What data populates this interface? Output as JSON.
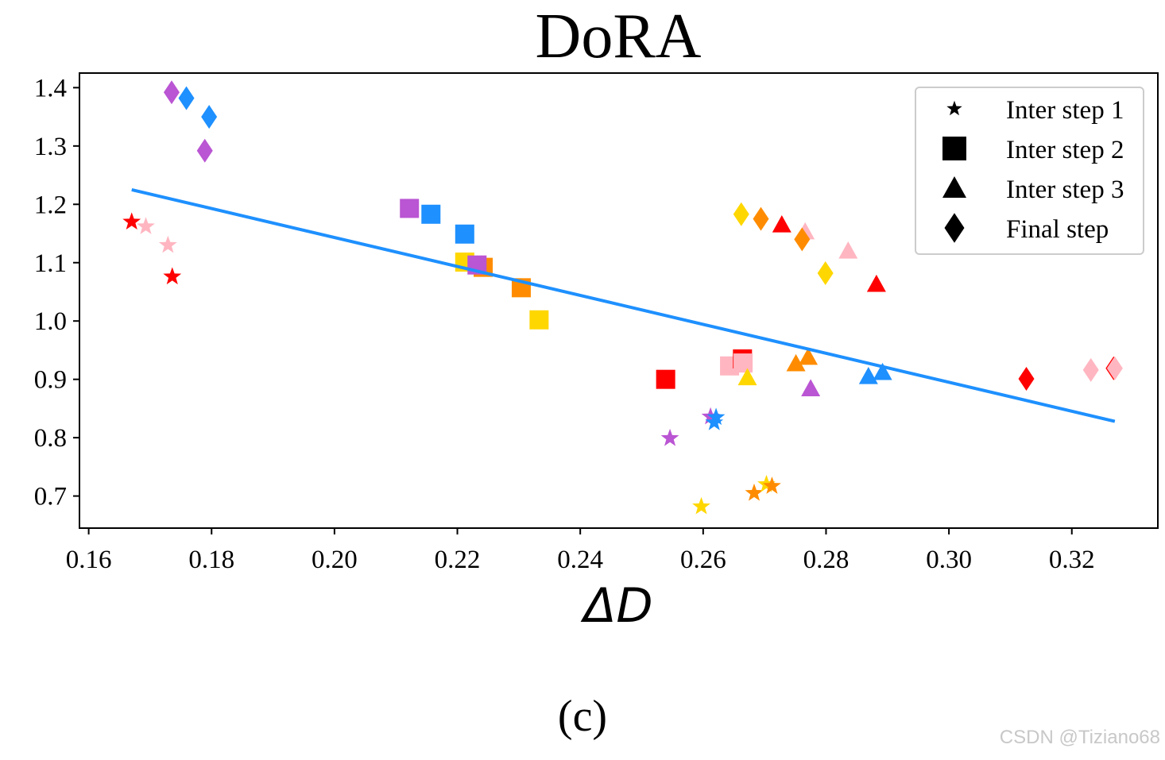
{
  "chart_data": {
    "type": "scatter",
    "title": "DoRA",
    "xlabel": "ΔD",
    "ylabel": "",
    "xlim": [
      0.1585,
      0.334
    ],
    "ylim": [
      0.645,
      1.425
    ],
    "xticks": [
      "0.16",
      "0.18",
      "0.20",
      "0.22",
      "0.24",
      "0.26",
      "0.28",
      "0.30",
      "0.32"
    ],
    "yticks": [
      "0.7",
      "0.8",
      "0.9",
      "1.0",
      "1.1",
      "1.2",
      "1.3",
      "1.4"
    ],
    "grid": false,
    "legend_position": "top-right",
    "legend": [
      {
        "marker": "star",
        "label": "Inter step 1"
      },
      {
        "marker": "square",
        "label": "Inter step 2"
      },
      {
        "marker": "triangle",
        "label": "Inter step 3"
      },
      {
        "marker": "diamond",
        "label": "Final step"
      }
    ],
    "fit_line": {
      "color": "#1e90ff",
      "x": [
        0.167,
        0.327
      ],
      "y": [
        1.225,
        0.828
      ]
    },
    "points": [
      {
        "x": 0.167,
        "y": 1.17,
        "marker": "star",
        "color": "#ff0000"
      },
      {
        "x": 0.1693,
        "y": 1.162,
        "marker": "star",
        "color": "#ffb6c1"
      },
      {
        "x": 0.1729,
        "y": 1.13,
        "marker": "star",
        "color": "#ffb6c1"
      },
      {
        "x": 0.1736,
        "y": 1.076,
        "marker": "star",
        "color": "#ff0000"
      },
      {
        "x": 0.2546,
        "y": 0.799,
        "marker": "star",
        "color": "#ba55d3"
      },
      {
        "x": 0.2597,
        "y": 0.682,
        "marker": "star",
        "color": "#ffd700"
      },
      {
        "x": 0.2612,
        "y": 0.836,
        "marker": "star",
        "color": "#ba55d3"
      },
      {
        "x": 0.2618,
        "y": 0.826,
        "marker": "star",
        "color": "#1e90ff"
      },
      {
        "x": 0.2621,
        "y": 0.835,
        "marker": "star",
        "color": "#1e90ff"
      },
      {
        "x": 0.2683,
        "y": 0.705,
        "marker": "star",
        "color": "#ff8c00"
      },
      {
        "x": 0.2703,
        "y": 0.72,
        "marker": "star",
        "color": "#ffd700"
      },
      {
        "x": 0.2712,
        "y": 0.717,
        "marker": "star",
        "color": "#ff8c00"
      },
      {
        "x": 0.2122,
        "y": 1.193,
        "marker": "square",
        "color": "#ba55d3"
      },
      {
        "x": 0.2157,
        "y": 1.183,
        "marker": "square",
        "color": "#1e90ff"
      },
      {
        "x": 0.2212,
        "y": 1.149,
        "marker": "square",
        "color": "#1e90ff"
      },
      {
        "x": 0.2212,
        "y": 1.101,
        "marker": "square",
        "color": "#ffd700"
      },
      {
        "x": 0.2242,
        "y": 1.092,
        "marker": "square",
        "color": "#ff8c00"
      },
      {
        "x": 0.2232,
        "y": 1.096,
        "marker": "square",
        "color": "#ba55d3"
      },
      {
        "x": 0.2304,
        "y": 1.057,
        "marker": "square",
        "color": "#ff8c00"
      },
      {
        "x": 0.2333,
        "y": 1.002,
        "marker": "square",
        "color": "#ffd700"
      },
      {
        "x": 0.2539,
        "y": 0.9,
        "marker": "square",
        "color": "#ff0000"
      },
      {
        "x": 0.2643,
        "y": 0.923,
        "marker": "square",
        "color": "#ffb6c1"
      },
      {
        "x": 0.2664,
        "y": 0.935,
        "marker": "square",
        "color": "#ff0000"
      },
      {
        "x": 0.2665,
        "y": 0.928,
        "marker": "square",
        "color": "#ffb6c1"
      },
      {
        "x": 0.2672,
        "y": 0.903,
        "marker": "triangle",
        "color": "#ffd700"
      },
      {
        "x": 0.2728,
        "y": 1.165,
        "marker": "triangle",
        "color": "#ff0000"
      },
      {
        "x": 0.2751,
        "y": 0.927,
        "marker": "triangle",
        "color": "#ff8c00"
      },
      {
        "x": 0.2766,
        "y": 1.153,
        "marker": "triangle",
        "color": "#ffb6c1"
      },
      {
        "x": 0.2771,
        "y": 0.938,
        "marker": "triangle",
        "color": "#ff8c00"
      },
      {
        "x": 0.2775,
        "y": 0.884,
        "marker": "triangle",
        "color": "#ba55d3"
      },
      {
        "x": 0.2836,
        "y": 1.12,
        "marker": "triangle",
        "color": "#ffb6c1"
      },
      {
        "x": 0.2869,
        "y": 0.905,
        "marker": "triangle",
        "color": "#1e90ff"
      },
      {
        "x": 0.2882,
        "y": 1.063,
        "marker": "triangle",
        "color": "#ff0000"
      },
      {
        "x": 0.2892,
        "y": 0.912,
        "marker": "triangle",
        "color": "#1e90ff"
      },
      {
        "x": 0.1735,
        "y": 1.392,
        "marker": "diamond",
        "color": "#ba55d3"
      },
      {
        "x": 0.1759,
        "y": 1.382,
        "marker": "diamond",
        "color": "#1e90ff"
      },
      {
        "x": 0.1789,
        "y": 1.292,
        "marker": "diamond",
        "color": "#ba55d3"
      },
      {
        "x": 0.1796,
        "y": 1.35,
        "marker": "diamond",
        "color": "#1e90ff"
      },
      {
        "x": 0.2662,
        "y": 1.183,
        "marker": "diamond",
        "color": "#ffd700"
      },
      {
        "x": 0.2694,
        "y": 1.175,
        "marker": "diamond",
        "color": "#ff8c00"
      },
      {
        "x": 0.2761,
        "y": 1.14,
        "marker": "diamond",
        "color": "#ff8c00"
      },
      {
        "x": 0.2799,
        "y": 1.082,
        "marker": "diamond",
        "color": "#ffd700"
      },
      {
        "x": 0.3126,
        "y": 0.901,
        "marker": "diamond",
        "color": "#ff0000"
      },
      {
        "x": 0.3231,
        "y": 0.916,
        "marker": "diamond",
        "color": "#ffb6c1"
      },
      {
        "x": 0.3268,
        "y": 0.919,
        "marker": "diamond",
        "color": "#ff0000"
      },
      {
        "x": 0.327,
        "y": 0.919,
        "marker": "diamond",
        "color": "#ffb6c1"
      }
    ]
  },
  "caption": "(c)",
  "watermark": "CSDN @Tiziano68"
}
